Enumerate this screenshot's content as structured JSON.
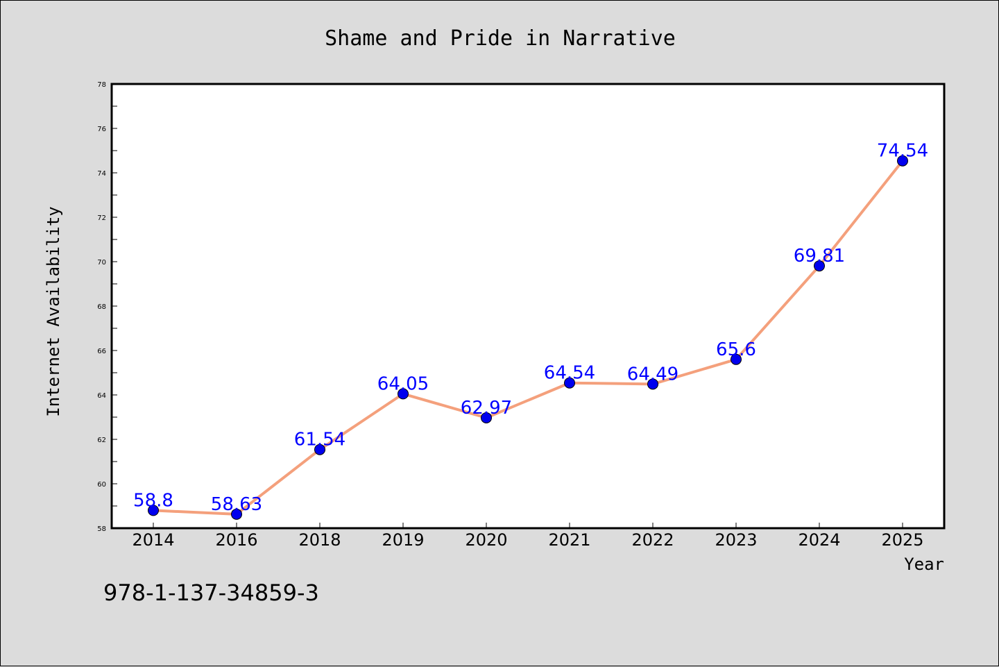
{
  "chart_data": {
    "type": "line",
    "title": "Shame and Pride in Narrative",
    "xlabel": "Year",
    "ylabel": "Internet Availability",
    "categories": [
      "2014",
      "2016",
      "2018",
      "2019",
      "2020",
      "2021",
      "2022",
      "2023",
      "2024",
      "2025"
    ],
    "series": [
      {
        "values": [
          58.8,
          58.63,
          61.54,
          64.05,
          62.97,
          64.54,
          64.49,
          65.6,
          69.81,
          74.54
        ],
        "labels": [
          "58.8",
          "58.63",
          "61.54",
          "64.05",
          "62.97",
          "64.54",
          "64.49",
          "65.6",
          "69.81",
          "74.54"
        ],
        "line_color": "#f4a07c",
        "marker_color": "#0000ee"
      }
    ],
    "ylim": [
      58,
      78
    ],
    "yticks": [
      "58",
      "60",
      "62",
      "64",
      "66",
      "68",
      "70",
      "72",
      "74",
      "76",
      "78"
    ],
    "grid": false,
    "label_color": "#0000ff"
  },
  "footer": {
    "isbn": "978-1-137-34859-3"
  }
}
